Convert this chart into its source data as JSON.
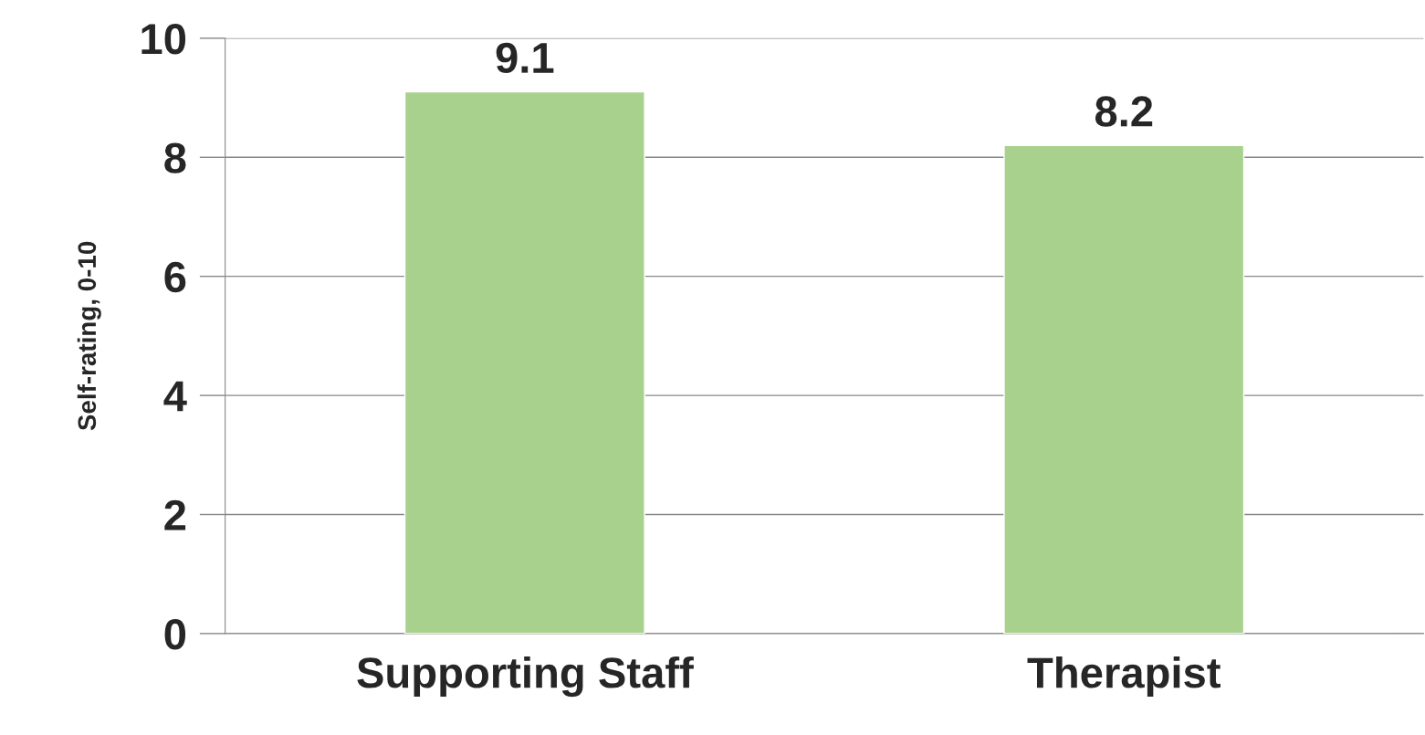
{
  "chart_data": {
    "type": "bar",
    "ylabel": "Self-rating, 0-10",
    "categories": [
      "Supporting Staff",
      "Therapist"
    ],
    "values": [
      9.1,
      8.2
    ],
    "color": "#a9d18e",
    "ylim": [
      0,
      10
    ],
    "yticks": [
      0,
      2,
      4,
      6,
      8,
      10
    ],
    "grid": "y",
    "data_labels": true
  }
}
